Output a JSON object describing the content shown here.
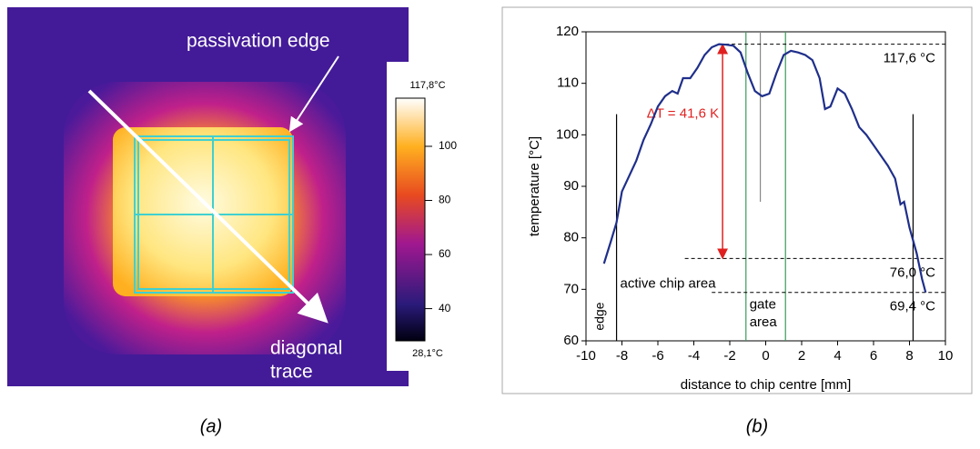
{
  "panel_a": {
    "passivation_edge": "passivation edge",
    "diagonal_trace": [
      "diagonal",
      "trace"
    ],
    "colorbar": {
      "lim": [
        28.1,
        117.8
      ],
      "ticks": [
        {
          "value": 28.1,
          "label": "28,1°C"
        },
        40,
        60,
        80,
        100,
        {
          "value": 117.8,
          "label": "117,8°C"
        }
      ]
    }
  },
  "captions": [
    "(a)",
    "(b)"
  ],
  "chart_data": {
    "type": "line",
    "xlabel": "distance to chip centre [mm]",
    "ylabel": "temperature [°C]",
    "xlim": [
      -10,
      10
    ],
    "ylim": [
      60,
      120
    ],
    "xticks": [
      -10,
      -8,
      -6,
      -4,
      -2,
      0,
      2,
      4,
      6,
      8,
      10
    ],
    "yticks": [
      60,
      70,
      80,
      90,
      100,
      110,
      120
    ],
    "color": "#1f2f8a",
    "x": [
      -9.0,
      -8.6,
      -8.3,
      -8.0,
      -7.6,
      -7.2,
      -6.8,
      -6.4,
      -6.0,
      -5.6,
      -5.2,
      -4.9,
      -4.6,
      -4.2,
      -3.8,
      -3.4,
      -3.0,
      -2.6,
      -2.2,
      -1.8,
      -1.4,
      -1.0,
      -0.6,
      -0.2,
      0.2,
      0.6,
      1.0,
      1.4,
      1.8,
      2.2,
      2.6,
      3.0,
      3.3,
      3.6,
      4.0,
      4.4,
      4.8,
      5.2,
      5.6,
      6.0,
      6.4,
      6.8,
      7.2,
      7.5,
      7.7,
      8.0,
      8.4,
      8.7,
      8.9
    ],
    "values": [
      75,
      79.5,
      83,
      89,
      92,
      95,
      99,
      102,
      105.5,
      107.5,
      108.5,
      108,
      111,
      111,
      113,
      115.5,
      117,
      117.6,
      117.5,
      117.3,
      116,
      112,
      108.5,
      107.5,
      108,
      112,
      115.5,
      116.3,
      116,
      115.5,
      114.5,
      111,
      105,
      105.5,
      109,
      108,
      105,
      101.5,
      100,
      98,
      96,
      94,
      91.5,
      86.5,
      87,
      82,
      77,
      72,
      69.4
    ],
    "hlines": [
      {
        "value": 117.6,
        "label": "117,6 °C",
        "from": -2.6
      },
      {
        "value": 76.0,
        "label": "76,0 °C",
        "from": -4.5
      },
      {
        "value": 69.4,
        "label": "69,4 °C",
        "from": -3.0
      }
    ],
    "vlines": [
      {
        "value": -8.3,
        "from": 60,
        "to": 104,
        "color": "#000000"
      },
      {
        "value": 8.2,
        "from": 60,
        "to": 104,
        "color": "#000000"
      },
      {
        "value": -1.1,
        "from": 60,
        "to": 120,
        "color": "#3a9a5a"
      },
      {
        "value": 1.1,
        "from": 60,
        "to": 120,
        "color": "#3a9a5a"
      },
      {
        "value": -0.3,
        "from": 87,
        "to": 120,
        "color": "#888888"
      }
    ],
    "delta": {
      "label": "ΔT = 41,6 K",
      "x": -2.4,
      "from": 76.0,
      "to": 117.6,
      "color": "#e02020"
    },
    "regions": {
      "edge": "edge",
      "active": "active chip area",
      "gate": [
        "gate",
        "area"
      ]
    }
  }
}
